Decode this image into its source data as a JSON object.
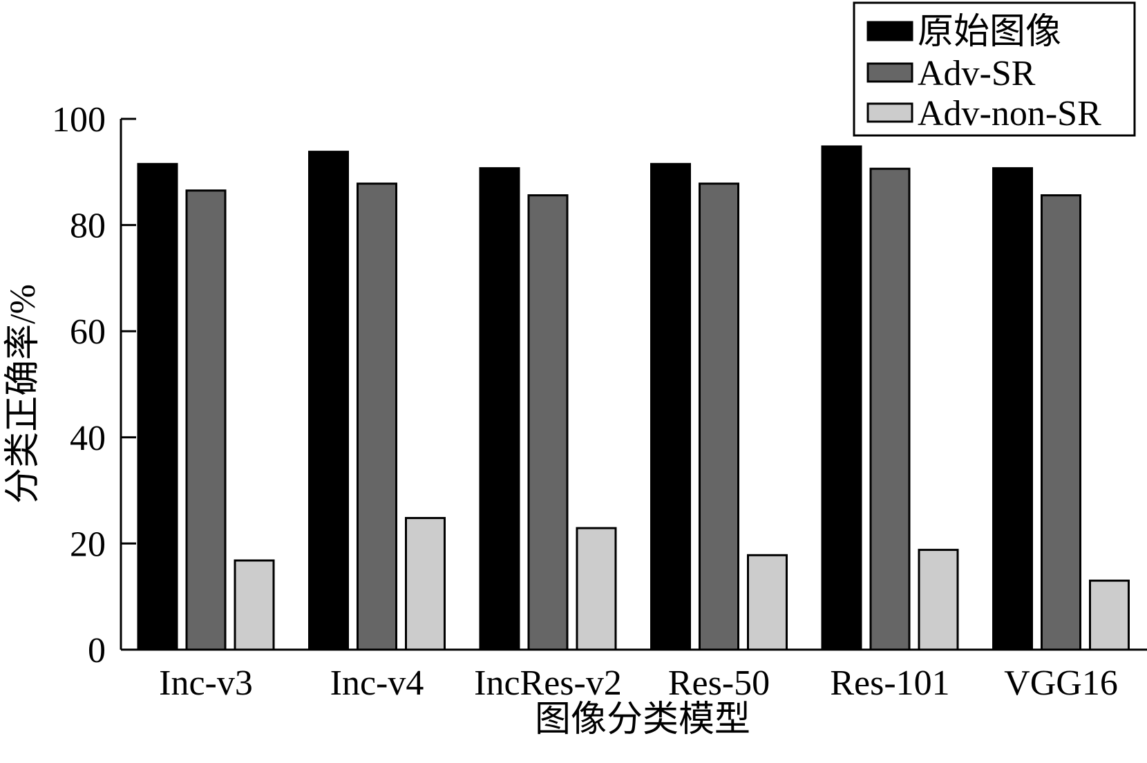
{
  "chart_data": {
    "type": "bar",
    "title": "",
    "xlabel": "图像分类模型",
    "ylabel": "分类正确率/%",
    "ylim": [
      0,
      100
    ],
    "yticks": [
      0,
      20,
      40,
      60,
      80,
      100
    ],
    "grid": false,
    "legend_position": "top-right",
    "categories": [
      "Inc-v3",
      "Inc-v4",
      "IncRes-v2",
      "Res-50",
      "Res-101",
      "VGG16"
    ],
    "series": [
      {
        "name": "原始图像",
        "color": "#000000",
        "values": [
          91.5,
          93.8,
          90.7,
          91.5,
          94.8,
          90.7
        ]
      },
      {
        "name": "Adv-SR",
        "color": "#666666",
        "values": [
          86.5,
          87.8,
          85.6,
          87.8,
          90.6,
          85.6
        ]
      },
      {
        "name": "Adv-non-SR",
        "color": "#cccccc",
        "values": [
          16.8,
          24.8,
          22.9,
          17.8,
          18.8,
          13.0
        ]
      }
    ]
  }
}
